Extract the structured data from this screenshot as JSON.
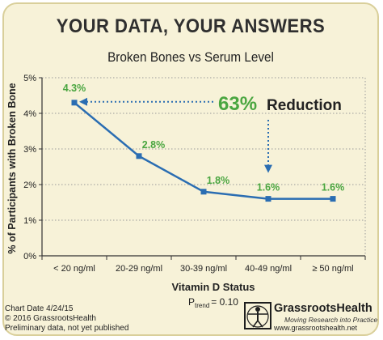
{
  "header": {
    "title": "YOUR DATA, YOUR ANSWERS",
    "subtitle": "Broken Bones vs Serum Level"
  },
  "chart_data": {
    "type": "line",
    "title": "Broken Bones vs Serum Level",
    "xlabel": "Vitamin D Status",
    "ylabel": "% of Participants with Broken Bone",
    "categories": [
      "< 20 ng/ml",
      "20-29 ng/ml",
      "30-39 ng/ml",
      "40-49 ng/ml",
      "≥ 50 ng/ml"
    ],
    "values": [
      4.3,
      2.8,
      1.8,
      1.6,
      1.6
    ],
    "data_labels": [
      "4.3%",
      "2.8%",
      "1.8%",
      "1.6%",
      "1.6%"
    ],
    "yticks": [
      "0%",
      "1%",
      "2%",
      "3%",
      "4%",
      "5%"
    ],
    "ylim": [
      0,
      5
    ],
    "grid": "horizontal dotted",
    "annotation": {
      "percent": "63%",
      "text": "Reduction"
    },
    "ptrend": {
      "prefix": "P",
      "subscript": "trend",
      "value": "= 0.10"
    },
    "colors": {
      "line": "#2a6db2",
      "data_label": "#4aa640",
      "annotation_percent": "#4aa640",
      "arrow": "#2a6db2",
      "background": "#f7f2d8",
      "grid": "#9a9a9a"
    }
  },
  "footer": {
    "chart_date": "Chart Date 4/24/15",
    "copyright": "© 2016 GrassrootsHealth",
    "note": "Preliminary data, not yet published"
  },
  "logo": {
    "name": "GrassrootsHealth",
    "tagline": "Moving Research into Practice",
    "url": "www.grassrootshealth.net"
  }
}
